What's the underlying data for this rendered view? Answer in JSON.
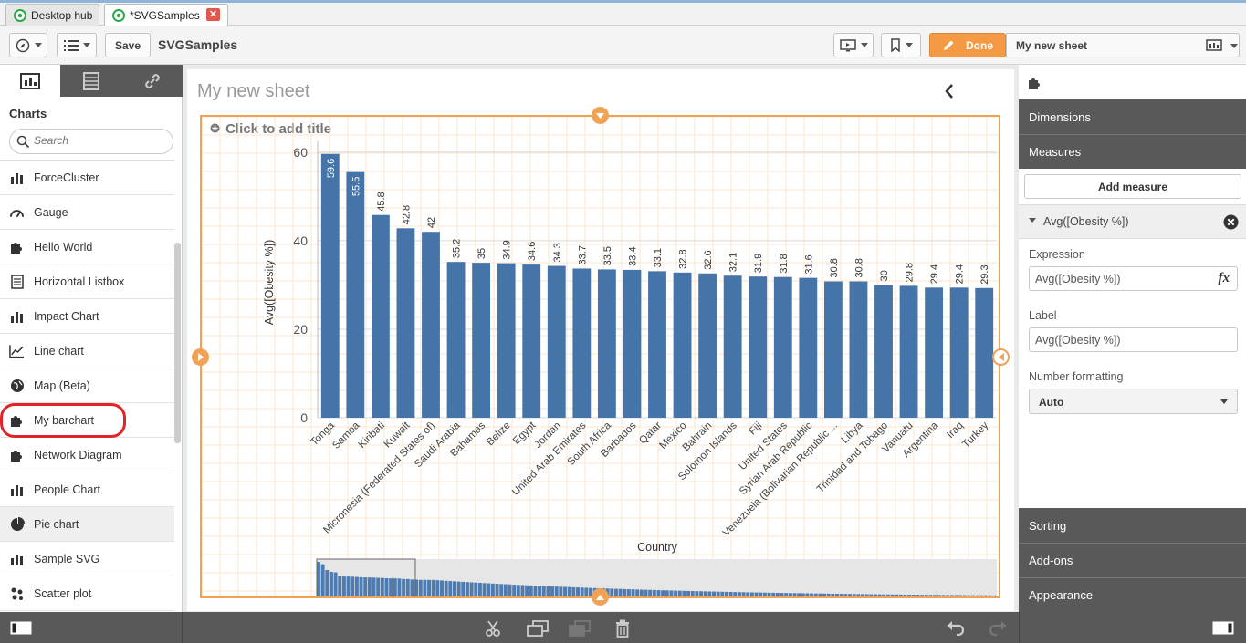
{
  "tabs": [
    {
      "label": "Desktop hub"
    },
    {
      "label": "*SVGSamples"
    }
  ],
  "toolbar": {
    "save_label": "Save",
    "app_title": "SVGSamples",
    "done_label": "Done",
    "sheet_name": "My new sheet"
  },
  "left": {
    "heading": "Charts",
    "search_placeholder": "Search",
    "items": [
      {
        "label": "ForceCluster",
        "icon": "bar-chart-icon"
      },
      {
        "label": "Gauge",
        "icon": "gauge-icon"
      },
      {
        "label": "Hello World",
        "icon": "puzzle-icon"
      },
      {
        "label": "Horizontal Listbox",
        "icon": "list-icon"
      },
      {
        "label": "Impact Chart",
        "icon": "bar-chart-icon"
      },
      {
        "label": "Line chart",
        "icon": "line-chart-icon"
      },
      {
        "label": "Map (Beta)",
        "icon": "globe-icon"
      },
      {
        "label": "My barchart",
        "icon": "puzzle-icon"
      },
      {
        "label": "Network Diagram",
        "icon": "puzzle-icon"
      },
      {
        "label": "People Chart",
        "icon": "bar-chart-icon"
      },
      {
        "label": "Pie chart",
        "icon": "pie-chart-icon"
      },
      {
        "label": "Sample SVG",
        "icon": "bar-chart-icon"
      },
      {
        "label": "Scatter plot",
        "icon": "scatter-icon"
      }
    ]
  },
  "sheet": {
    "title": "My new sheet",
    "add_title": "Click to add title"
  },
  "chart_data": {
    "type": "bar",
    "xlabel": "Country",
    "ylabel": "Avg([Obesity %])",
    "ylim": [
      0,
      60
    ],
    "yticks": [
      0,
      20,
      40,
      60
    ],
    "grid": true,
    "categories": [
      "Tonga",
      "Samoa",
      "Kiribati",
      "Kuwait",
      "Micronesia (Federated States of)",
      "Saudi Arabia",
      "Bahamas",
      "Belize",
      "Egypt",
      "Jordan",
      "United Arab Emirates",
      "South Africa",
      "Barbados",
      "Qatar",
      "Mexico",
      "Bahrain",
      "Solomon Islands",
      "Fiji",
      "United States",
      "Syrian Arab Republic",
      "Venezuela (Bolivarian Republic ...",
      "Libya",
      "Trinidad and Tobago",
      "Vanuatu",
      "Argentina",
      "Iraq",
      "Turkey"
    ],
    "tick_labels": [
      "Tonga",
      "Samoa",
      "Kiribati",
      "Kuwait",
      "Micronesia (Federated States of)",
      "Saudi Arabia",
      "Bahamas",
      "Belize",
      "Egypt",
      "Jordan",
      "United Arab Emirates",
      "South Africa",
      "Barbados",
      "Qatar",
      "Mexico",
      "Bahrain",
      "Solomon Islands",
      "Fiji",
      "United States",
      "Syrian Arab Republic",
      "Venezuela (Bolivarian Republic ...",
      "Libya",
      "Trinidad and Tobago",
      "Vanuatu",
      "Argentina",
      "Iraq",
      "Turkey"
    ],
    "values": [
      59.6,
      55.5,
      45.8,
      42.8,
      42,
      35.2,
      35,
      34.9,
      34.6,
      34.3,
      33.7,
      33.5,
      33.4,
      33.1,
      32.8,
      32.6,
      32.1,
      31.9,
      31.8,
      31.6,
      30.8,
      30.8,
      30,
      29.8,
      29.4,
      29.4,
      29.3
    ],
    "data_labels": [
      "59.6",
      "55.5",
      "45.8",
      "42.8",
      "42",
      "35.2",
      "35",
      "34.9",
      "34.6",
      "34.3",
      "33.7",
      "33.5",
      "33.4",
      "33.1",
      "32.8",
      "32.6",
      "32.1",
      "31.9",
      "31.8",
      "31.6",
      "30.8",
      "30.8",
      "30",
      "29.8",
      "29.4",
      "29.4",
      "29.3"
    ],
    "bar_color": "#4574a8"
  },
  "right": {
    "dimensions": "Dimensions",
    "measures": "Measures",
    "add_measure": "Add measure",
    "measure_name": "Avg([Obesity %])",
    "expression_label": "Expression",
    "expression_value": "Avg([Obesity %])",
    "label_label": "Label",
    "label_value": "Avg([Obesity %])",
    "number_formatting_label": "Number formatting",
    "number_formatting_value": "Auto",
    "sorting": "Sorting",
    "addons": "Add-ons",
    "appearance": "Appearance"
  },
  "colors": {
    "accent": "#f0a257",
    "bar": "#4574a8",
    "highlight": "#e0242a",
    "panel_dark": "#595959"
  }
}
